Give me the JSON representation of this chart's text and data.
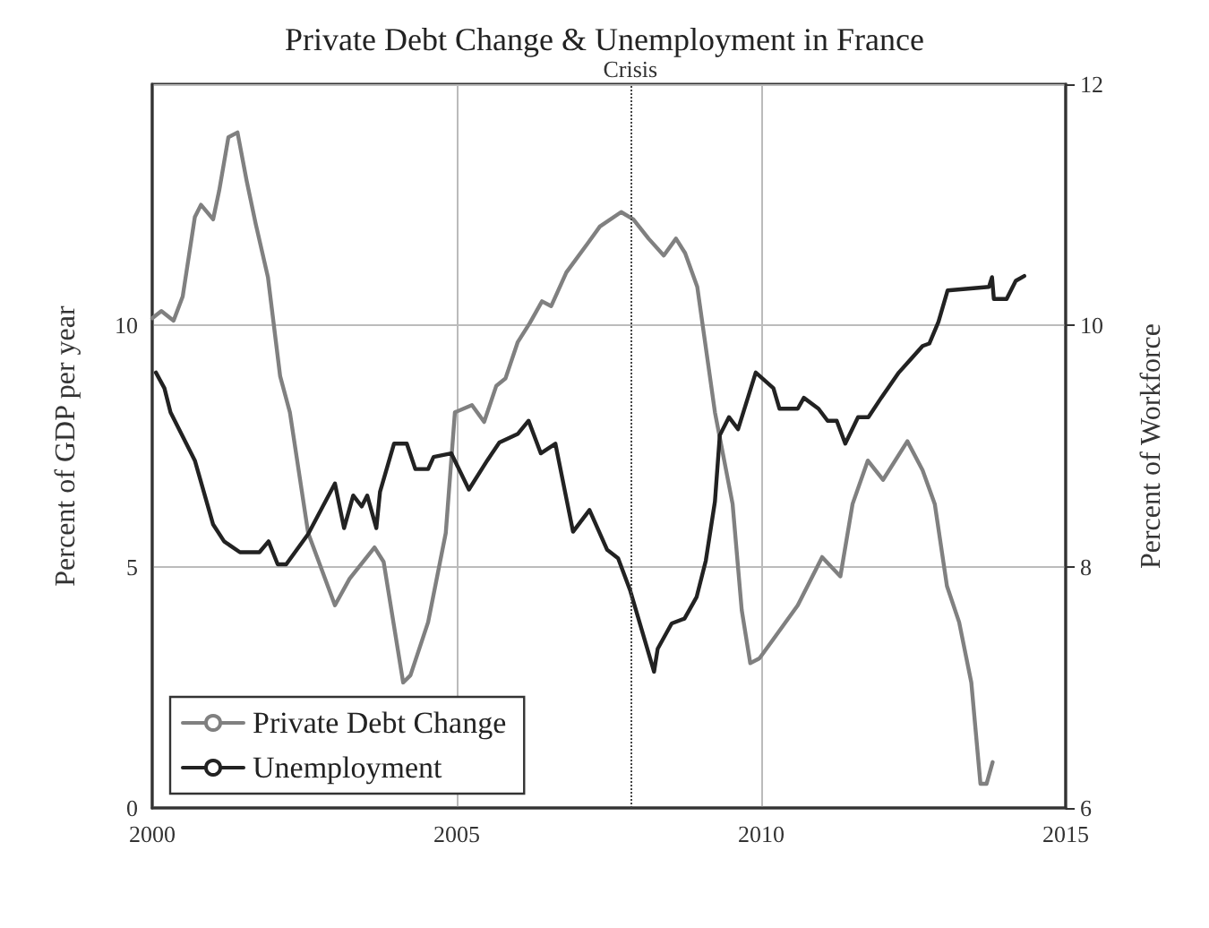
{
  "chart_data": {
    "type": "line",
    "title": "Private Debt Change & Unemployment in France",
    "ylabel": "Percent of GDP per year",
    "y2label": "Percent of Workforce",
    "xlim": [
      2000,
      2015
    ],
    "xticks": [
      2000,
      2005,
      2010,
      2015
    ],
    "ylim": [
      0,
      15
    ],
    "yticks": [
      0,
      5,
      10
    ],
    "y2lim": [
      6,
      12
    ],
    "y2ticks": [
      6,
      8,
      10,
      12
    ],
    "grid": true,
    "legend": "bottom left",
    "line_style": "solid",
    "ref_lines": [
      {
        "axis": "x",
        "value": 2007.85,
        "label": "Crisis",
        "line_style": "dotted"
      }
    ],
    "series": [
      {
        "name": "Private Debt Change",
        "color": "#808080",
        "x": [
          2000.0,
          2000.15,
          2000.35,
          2000.5,
          2000.7,
          2000.8,
          2001.0,
          2001.1,
          2001.25,
          2001.4,
          2001.55,
          2001.7,
          2001.9,
          2002.1,
          2002.26,
          2002.56,
          2003.0,
          2003.24,
          2003.65,
          2003.8,
          2004.12,
          2004.24,
          2004.53,
          2004.82,
          2004.97,
          2005.25,
          2005.45,
          2005.65,
          2005.8,
          2006.0,
          2006.2,
          2006.4,
          2006.55,
          2006.8,
          2007.15,
          2007.35,
          2007.7,
          2007.9,
          2008.15,
          2008.4,
          2008.6,
          2008.75,
          2008.95,
          2009.24,
          2009.53,
          2009.68,
          2009.82,
          2009.97,
          2010.2,
          2010.6,
          2011.0,
          2011.3,
          2011.5,
          2011.75,
          2012.0,
          2012.4,
          2012.65,
          2012.85,
          2013.05,
          2013.25,
          2013.45,
          2013.6,
          2013.7,
          2013.8
        ],
        "values": [
          10.15,
          10.3,
          10.1,
          10.6,
          12.25,
          12.5,
          12.2,
          12.8,
          13.9,
          14.0,
          13.0,
          12.1,
          11.0,
          8.95,
          8.2,
          5.7,
          4.2,
          4.75,
          5.4,
          5.1,
          2.6,
          2.75,
          3.85,
          5.7,
          8.2,
          8.35,
          8.0,
          8.75,
          8.9,
          9.65,
          10.05,
          10.5,
          10.4,
          11.1,
          11.7,
          12.05,
          12.35,
          12.2,
          11.8,
          11.45,
          11.8,
          11.5,
          10.8,
          8.2,
          6.3,
          4.1,
          3.0,
          3.1,
          3.5,
          4.2,
          5.2,
          4.8,
          6.3,
          7.2,
          6.8,
          7.6,
          7.0,
          6.3,
          4.6,
          3.85,
          2.6,
          0.5,
          0.5,
          0.95
        ]
      },
      {
        "name": "Unemployment",
        "color": "#222222",
        "axis": "y2",
        "x": [
          2000.06,
          2000.2,
          2000.3,
          2000.7,
          2001.0,
          2001.18,
          2001.44,
          2001.76,
          2001.91,
          2002.06,
          2002.2,
          2002.56,
          2003.0,
          2003.15,
          2003.3,
          2003.44,
          2003.53,
          2003.68,
          2003.74,
          2003.97,
          2004.18,
          2004.32,
          2004.53,
          2004.62,
          2004.91,
          2005.2,
          2005.5,
          2005.7,
          2006.0,
          2006.18,
          2006.38,
          2006.62,
          2006.91,
          2007.18,
          2007.47,
          2007.65,
          2007.85,
          2008.24,
          2008.3,
          2008.53,
          2008.74,
          2008.94,
          2009.09,
          2009.24,
          2009.32,
          2009.47,
          2009.62,
          2009.91,
          2010.2,
          2010.3,
          2010.6,
          2010.7,
          2010.94,
          2011.09,
          2011.24,
          2011.38,
          2011.59,
          2011.76,
          2011.97,
          2012.26,
          2012.65,
          2012.76,
          2012.91,
          2013.06,
          2013.74,
          2013.79,
          2013.82,
          2014.03,
          2014.18,
          2014.32
        ],
        "values": [
          9.61,
          9.48,
          9.28,
          8.88,
          8.35,
          8.21,
          8.12,
          8.12,
          8.21,
          8.02,
          8.02,
          8.27,
          8.69,
          8.32,
          8.59,
          8.5,
          8.59,
          8.32,
          8.62,
          9.02,
          9.02,
          8.81,
          8.81,
          8.91,
          8.94,
          8.64,
          8.88,
          9.03,
          9.1,
          9.21,
          8.94,
          9.02,
          8.29,
          8.47,
          8.14,
          8.07,
          7.8,
          7.13,
          7.32,
          7.53,
          7.57,
          7.75,
          8.05,
          8.54,
          9.09,
          9.24,
          9.14,
          9.61,
          9.48,
          9.31,
          9.31,
          9.4,
          9.31,
          9.21,
          9.21,
          9.02,
          9.24,
          9.24,
          9.4,
          9.61,
          9.83,
          9.85,
          10.03,
          10.29,
          10.32,
          10.4,
          10.22,
          10.22,
          10.37,
          10.41
        ]
      }
    ]
  }
}
